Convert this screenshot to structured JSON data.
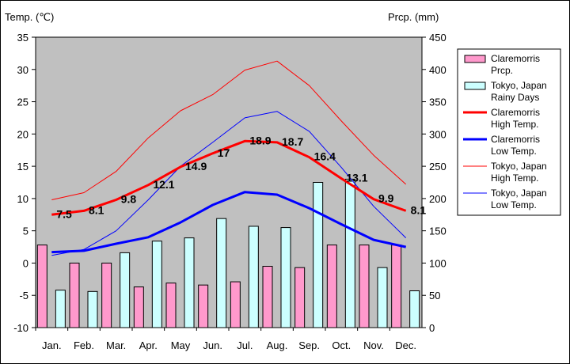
{
  "chart_data": {
    "type": "bar",
    "left_axis_title": "Temp. (℃)",
    "right_axis_title": "Prcp. (mm)",
    "categories": [
      "Jan.",
      "Feb.",
      "Mar.",
      "Apr.",
      "May",
      "Jun.",
      "Jul.",
      "Aug.",
      "Sep.",
      "Oct.",
      "Nov.",
      "Dec."
    ],
    "left_ticks": [
      "35",
      "30",
      "25",
      "20",
      "15",
      "10",
      "5",
      "0",
      "-5",
      "-10"
    ],
    "right_ticks": [
      "450",
      "400",
      "350",
      "300",
      "250",
      "200",
      "150",
      "100",
      "50",
      "0"
    ],
    "ylim_temp": [
      -10,
      35
    ],
    "ylim_prcp": [
      0,
      450
    ],
    "grid": false,
    "legend_position": "right",
    "bar_series": [
      {
        "name": "Claremorris Prcp.",
        "legend_lines": [
          "Claremorris",
          "Prcp."
        ],
        "color": "#ff99cc",
        "values": [
          128,
          100,
          100,
          63,
          69,
          66,
          71,
          95,
          93,
          128,
          128,
          128
        ]
      },
      {
        "name": "Tokyo, Japan Rainy Days",
        "legend_lines": [
          "Tokyo, Japan",
          "Rainy Days"
        ],
        "color": "#ccffff",
        "values": [
          58,
          56,
          116,
          134,
          139,
          169,
          157,
          155,
          225,
          230,
          93,
          57
        ]
      }
    ],
    "line_series": [
      {
        "name": "Claremorris High Temp.",
        "legend_lines": [
          "Claremorris",
          "High Temp."
        ],
        "color": "#ff0000",
        "width": 3,
        "values": [
          7.5,
          8.1,
          9.8,
          12.1,
          14.9,
          17,
          18.9,
          18.7,
          16.4,
          13.1,
          9.9,
          8.1
        ],
        "labels": true
      },
      {
        "name": "Claremorris Low Temp.",
        "legend_lines": [
          "Claremorris",
          "Low Temp."
        ],
        "color": "#0000ff",
        "width": 3,
        "values": [
          1.7,
          1.9,
          3.0,
          4.0,
          6.3,
          9.0,
          11.0,
          10.6,
          8.5,
          6.0,
          3.6,
          2.5
        ],
        "labels": false
      },
      {
        "name": "Tokyo, Japan High Temp.",
        "legend_lines": [
          "Tokyo, Japan",
          "High Temp."
        ],
        "color": "#ff0000",
        "width": 1,
        "values": [
          9.8,
          10.9,
          14.2,
          19.4,
          23.6,
          26.1,
          29.9,
          31.3,
          27.5,
          22.0,
          16.7,
          12.2
        ],
        "labels": false
      },
      {
        "name": "Tokyo, Japan Low Temp.",
        "legend_lines": [
          "Tokyo, Japan",
          "Low Temp."
        ],
        "color": "#0000ff",
        "width": 1,
        "values": [
          1.2,
          2.1,
          5.0,
          9.8,
          15.0,
          18.7,
          22.5,
          23.5,
          20.4,
          14.8,
          8.8,
          3.9
        ],
        "labels": false
      }
    ]
  }
}
